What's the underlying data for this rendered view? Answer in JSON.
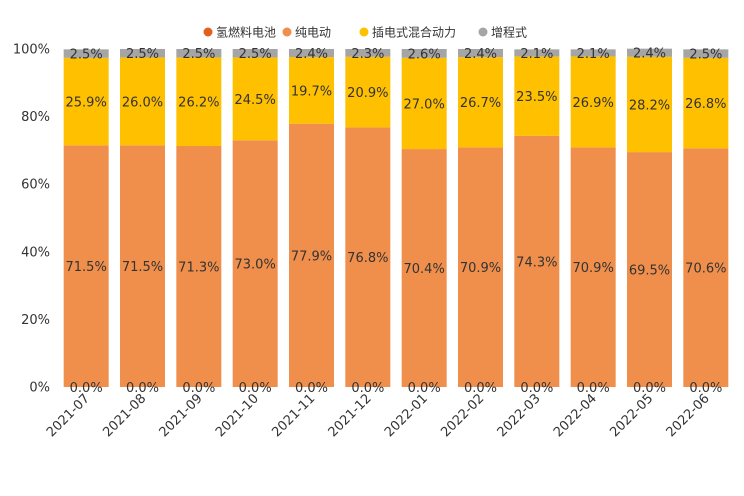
{
  "chart_data": {
    "type": "bar",
    "stacked": true,
    "categories": [
      "2021-07",
      "2021-08",
      "2021-09",
      "2021-10",
      "2021-11",
      "2021-12",
      "2022-01",
      "2022-02",
      "2022-03",
      "2022-04",
      "2022-05",
      "2022-06"
    ],
    "series": [
      {
        "name": "氢燃料电池",
        "color": "#e0601c",
        "values": [
          0,
          0,
          0,
          0,
          0,
          0,
          0,
          0,
          0,
          0,
          0,
          0
        ],
        "labels": [
          "0.0%",
          "0.0%",
          "0.0%",
          "0.0%",
          "0.0%",
          "0.0%",
          "0.0%",
          "0.0%",
          "0.0%",
          "0.0%",
          "0.0%",
          "0.0%"
        ]
      },
      {
        "name": "纯电动",
        "color": "#f08f4c",
        "values": [
          71.5,
          71.5,
          71.3,
          73.0,
          77.9,
          76.8,
          70.4,
          70.9,
          74.3,
          70.9,
          69.5,
          70.6
        ],
        "labels": [
          "71.5%",
          "71.5%",
          "71.3%",
          "73.0%",
          "77.9%",
          "76.8%",
          "70.4%",
          "70.9%",
          "74.3%",
          "70.9%",
          "69.5%",
          "70.6%"
        ]
      },
      {
        "name": "插电式混合动力",
        "color": "#ffc000",
        "values": [
          25.9,
          26.0,
          26.2,
          24.5,
          19.7,
          20.9,
          27.0,
          26.7,
          23.5,
          26.9,
          28.2,
          26.8
        ],
        "labels": [
          "25.9%",
          "26.0%",
          "26.2%",
          "24.5%",
          "19.7%",
          "20.9%",
          "27.0%",
          "26.7%",
          "23.5%",
          "26.9%",
          "28.2%",
          "26.8%"
        ]
      },
      {
        "name": "增程式",
        "color": "#a5a5a5",
        "values": [
          2.5,
          2.5,
          2.5,
          2.5,
          2.4,
          2.3,
          2.6,
          2.4,
          2.1,
          2.1,
          2.4,
          2.5
        ],
        "labels": [
          "2.5%",
          "2.5%",
          "2.5%",
          "2.5%",
          "2.4%",
          "2.3%",
          "2.6%",
          "2.4%",
          "2.1%",
          "2.1%",
          "2.4%",
          "2.5%"
        ]
      }
    ],
    "yticks": [
      "0%",
      "20%",
      "40%",
      "60%",
      "80%",
      "100%"
    ],
    "ylim": [
      0,
      100
    ],
    "legend_position": "top-center",
    "grid": false
  }
}
